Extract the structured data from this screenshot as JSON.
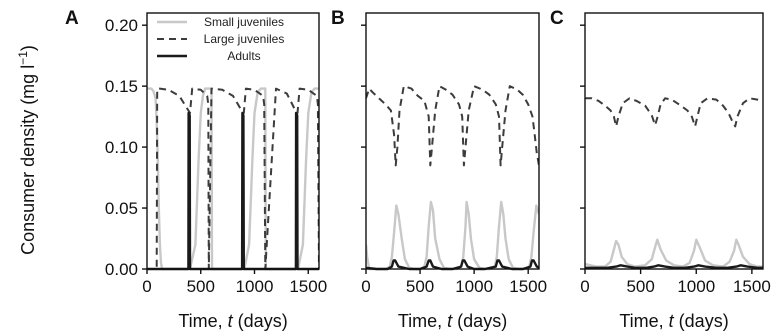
{
  "figure": {
    "ylabel_main": "Consumer density (mg l",
    "ylabel_sup": "−1",
    "ylabel_close": ")",
    "xlabel_prefix": "Time, ",
    "xlabel_var": "t",
    "xlabel_suffix": " (days)",
    "legend": [
      "Small juveniles",
      "Large juveniles",
      "Adults"
    ]
  },
  "colors": {
    "small_juveniles": "#c8c8c8",
    "large_juveniles": "#3c3c3c",
    "adults": "#1a1a1a",
    "axis": "#111111"
  },
  "chart_data": [
    {
      "type": "line",
      "panel": "A",
      "xlim": [
        0,
        1600
      ],
      "ylim": [
        0,
        0.21
      ],
      "xticks": [
        "0",
        "500",
        "1000",
        "1500"
      ],
      "yticks": [
        "0.00",
        "0.05",
        "0.10",
        "0.15",
        "0.20"
      ],
      "legend_position": "top-left",
      "series": [
        {
          "name": "Small juveniles",
          "style": "solid-light",
          "x": [
            0,
            15,
            40,
            60,
            80,
            90,
            100,
            110,
            120,
            130,
            140,
            150,
            155,
            160,
            165,
            200,
            300,
            390,
            400,
            450,
            480,
            500,
            520,
            540,
            560,
            575,
            600,
            605,
            650,
            800,
            900,
            905,
            950,
            980,
            1000,
            1030,
            1060,
            1090,
            1100,
            1105,
            1150,
            1300,
            1400,
            1405,
            1450,
            1480,
            1500,
            1530,
            1560,
            1600
          ],
          "y": [
            0.148,
            0.148,
            0.148,
            0.146,
            0.14,
            0.12,
            0.09,
            0.05,
            0.02,
            0.005,
            0.0,
            0.0,
            0.0,
            0.0,
            0.0,
            0.0,
            0.0,
            0.0,
            0.0,
            0.02,
            0.09,
            0.128,
            0.142,
            0.148,
            0.148,
            0.148,
            0.148,
            0.0,
            0.0,
            0.0,
            0.0,
            0.0,
            0.02,
            0.09,
            0.128,
            0.145,
            0.148,
            0.148,
            0.148,
            0.0,
            0.0,
            0.0,
            0.0,
            0.0,
            0.02,
            0.09,
            0.128,
            0.145,
            0.148,
            0.148
          ]
        },
        {
          "name": "Large juveniles",
          "style": "dashed",
          "x": [
            0,
            40,
            60,
            80,
            85,
            90,
            95,
            100,
            120,
            200,
            300,
            385,
            400,
            420,
            500,
            560,
            570,
            575,
            600,
            700,
            800,
            880,
            900,
            920,
            1000,
            1080,
            1090,
            1100,
            1200,
            1300,
            1380,
            1400,
            1420,
            1500,
            1580,
            1590,
            1600
          ],
          "y": [
            0.0,
            0.0,
            0.0,
            0.0,
            0.0,
            0.0,
            0.148,
            0.148,
            0.148,
            0.147,
            0.142,
            0.13,
            0.128,
            0.148,
            0.147,
            0.142,
            0.135,
            0.0,
            0.148,
            0.147,
            0.142,
            0.13,
            0.128,
            0.148,
            0.147,
            0.142,
            0.135,
            0.0,
            0.148,
            0.144,
            0.13,
            0.128,
            0.148,
            0.147,
            0.142,
            0.135,
            0.0
          ]
        },
        {
          "name": "Adults",
          "style": "solid-dark",
          "x": [
            0,
            380,
            385,
            387,
            397,
            400,
            405,
            600,
            880,
            885,
            887,
            897,
            900,
            905,
            1100,
            1380,
            1385,
            1387,
            1397,
            1400,
            1405,
            1600
          ],
          "y": [
            0.0,
            0.0,
            0.0,
            0.128,
            0.126,
            0.0,
            0.0,
            0.0,
            0.0,
            0.0,
            0.128,
            0.126,
            0.0,
            0.0,
            0.0,
            0.0,
            0.0,
            0.128,
            0.126,
            0.0,
            0.0,
            0.0
          ]
        }
      ]
    },
    {
      "type": "line",
      "panel": "B",
      "xlim": [
        0,
        1600
      ],
      "ylim": [
        0,
        0.21
      ],
      "xticks": [
        "0",
        "500",
        "1000",
        "1500"
      ],
      "yticks": [],
      "series": [
        {
          "name": "Small juveniles",
          "style": "solid-light",
          "x": [
            0,
            10,
            30,
            60,
            120,
            180,
            220,
            240,
            260,
            280,
            300,
            330,
            360,
            400,
            450,
            500,
            540,
            560,
            580,
            600,
            620,
            640,
            680,
            720,
            780,
            840,
            880,
            900,
            920,
            930,
            950,
            970,
            1000,
            1050,
            1100,
            1150,
            1190,
            1210,
            1230,
            1250,
            1270,
            1290,
            1320,
            1360,
            1420,
            1480,
            1510,
            1530,
            1550,
            1575,
            1600
          ],
          "y": [
            0.02,
            0.01,
            0.0,
            0.0,
            0.0,
            0.0,
            0.002,
            0.01,
            0.03,
            0.052,
            0.045,
            0.025,
            0.008,
            0.001,
            0.0,
            0.0,
            0.002,
            0.01,
            0.035,
            0.055,
            0.048,
            0.025,
            0.008,
            0.001,
            0.0,
            0.0,
            0.002,
            0.01,
            0.035,
            0.055,
            0.045,
            0.025,
            0.008,
            0.001,
            0.0,
            0.0,
            0.002,
            0.01,
            0.035,
            0.055,
            0.045,
            0.025,
            0.008,
            0.001,
            0.0,
            0.0,
            0.002,
            0.01,
            0.03,
            0.052,
            0.045
          ]
        },
        {
          "name": "Large juveniles",
          "style": "dashed",
          "x": [
            0,
            30,
            60,
            120,
            180,
            230,
            260,
            275,
            290,
            310,
            350,
            420,
            480,
            540,
            580,
            595,
            610,
            640,
            680,
            740,
            800,
            860,
            890,
            905,
            920,
            950,
            1000,
            1080,
            1140,
            1200,
            1230,
            1245,
            1260,
            1290,
            1330,
            1400,
            1450,
            1500,
            1540,
            1560,
            1580,
            1600
          ],
          "y": [
            0.14,
            0.148,
            0.145,
            0.14,
            0.135,
            0.13,
            0.11,
            0.085,
            0.1,
            0.13,
            0.15,
            0.148,
            0.142,
            0.138,
            0.125,
            0.085,
            0.1,
            0.13,
            0.15,
            0.147,
            0.143,
            0.135,
            0.125,
            0.085,
            0.1,
            0.13,
            0.15,
            0.147,
            0.143,
            0.135,
            0.125,
            0.085,
            0.1,
            0.13,
            0.15,
            0.147,
            0.143,
            0.135,
            0.125,
            0.11,
            0.095,
            0.085
          ]
        },
        {
          "name": "Adults",
          "style": "solid-dark",
          "x": [
            0,
            100,
            200,
            240,
            255,
            270,
            300,
            400,
            500,
            560,
            580,
            595,
            620,
            700,
            800,
            880,
            895,
            910,
            940,
            1000,
            1100,
            1200,
            1215,
            1230,
            1260,
            1350,
            1450,
            1520,
            1535,
            1550,
            1580,
            1600
          ],
          "y": [
            0.001,
            0.0,
            0.0,
            0.002,
            0.007,
            0.007,
            0.002,
            0.0,
            0.0,
            0.002,
            0.007,
            0.007,
            0.002,
            0.0,
            0.0,
            0.002,
            0.007,
            0.007,
            0.002,
            0.0,
            0.0,
            0.002,
            0.007,
            0.007,
            0.002,
            0.0,
            0.0,
            0.002,
            0.007,
            0.007,
            0.002,
            0.001
          ]
        }
      ]
    },
    {
      "type": "line",
      "panel": "C",
      "xlim": [
        0,
        1600
      ],
      "ylim": [
        0,
        0.21
      ],
      "xticks": [
        "0",
        "500",
        "1000",
        "1500"
      ],
      "yticks": [],
      "series": [
        {
          "name": "Small juveniles",
          "style": "solid-light",
          "x": [
            0,
            100,
            180,
            230,
            260,
            280,
            300,
            330,
            380,
            450,
            540,
            600,
            630,
            650,
            680,
            730,
            800,
            880,
            940,
            980,
            1000,
            1030,
            1080,
            1150,
            1240,
            1300,
            1340,
            1360,
            1380,
            1420,
            1480,
            1550,
            1600
          ],
          "y": [
            0.004,
            0.002,
            0.002,
            0.006,
            0.016,
            0.023,
            0.02,
            0.01,
            0.004,
            0.002,
            0.003,
            0.008,
            0.018,
            0.024,
            0.016,
            0.007,
            0.003,
            0.002,
            0.005,
            0.015,
            0.024,
            0.018,
            0.007,
            0.003,
            0.002,
            0.006,
            0.015,
            0.024,
            0.02,
            0.01,
            0.004,
            0.002,
            0.002
          ]
        },
        {
          "name": "Large juveniles",
          "style": "dashed",
          "x": [
            0,
            60,
            120,
            180,
            230,
            260,
            280,
            300,
            340,
            400,
            460,
            540,
            600,
            630,
            650,
            680,
            720,
            780,
            860,
            920,
            960,
            990,
            1010,
            1040,
            1100,
            1180,
            1240,
            1290,
            1330,
            1350,
            1370,
            1420,
            1480,
            1550,
            1600
          ],
          "y": [
            0.14,
            0.14,
            0.138,
            0.134,
            0.13,
            0.125,
            0.117,
            0.125,
            0.136,
            0.14,
            0.138,
            0.134,
            0.126,
            0.118,
            0.124,
            0.135,
            0.14,
            0.139,
            0.134,
            0.13,
            0.125,
            0.117,
            0.125,
            0.136,
            0.14,
            0.139,
            0.134,
            0.128,
            0.12,
            0.117,
            0.125,
            0.136,
            0.14,
            0.139,
            0.138
          ]
        },
        {
          "name": "Adults",
          "style": "solid-dark",
          "x": [
            0,
            100,
            200,
            280,
            320,
            380,
            450,
            550,
            620,
            660,
            720,
            800,
            900,
            980,
            1020,
            1080,
            1180,
            1280,
            1360,
            1400,
            1460,
            1550,
            1600
          ],
          "y": [
            0.001,
            0.001,
            0.001,
            0.002,
            0.003,
            0.002,
            0.001,
            0.001,
            0.002,
            0.003,
            0.002,
            0.001,
            0.001,
            0.002,
            0.003,
            0.002,
            0.001,
            0.001,
            0.002,
            0.003,
            0.002,
            0.001,
            0.001
          ]
        }
      ]
    }
  ]
}
